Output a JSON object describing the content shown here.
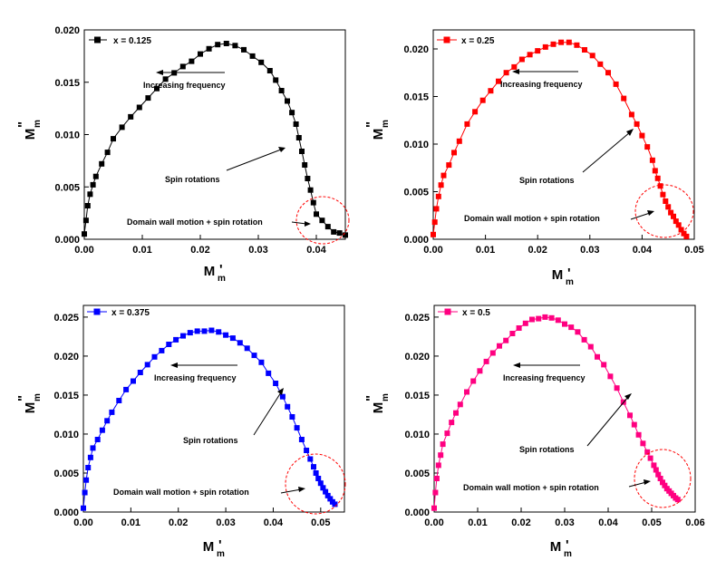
{
  "chart_data": [
    {
      "type": "scatter",
      "series": [
        {
          "name": "x = 0.125",
          "color": "#000000",
          "x": [
            0.0,
            0.0003,
            0.0006,
            0.001,
            0.0015,
            0.002,
            0.003,
            0.004,
            0.005,
            0.0065,
            0.008,
            0.0095,
            0.011,
            0.0125,
            0.014,
            0.0155,
            0.017,
            0.0185,
            0.02,
            0.0215,
            0.023,
            0.0245,
            0.026,
            0.0275,
            0.029,
            0.0305,
            0.032,
            0.033,
            0.034,
            0.035,
            0.0358,
            0.0365,
            0.037,
            0.0375,
            0.038,
            0.0385,
            0.039,
            0.0395,
            0.04,
            0.041,
            0.042,
            0.043,
            0.044,
            0.045
          ],
          "y": [
            0.0005,
            0.0018,
            0.0032,
            0.0043,
            0.0052,
            0.006,
            0.0072,
            0.0083,
            0.0096,
            0.0107,
            0.0117,
            0.0126,
            0.0135,
            0.0144,
            0.0153,
            0.0159,
            0.0165,
            0.017,
            0.0177,
            0.0182,
            0.0186,
            0.0187,
            0.0185,
            0.0181,
            0.0175,
            0.0169,
            0.0161,
            0.0152,
            0.0142,
            0.0132,
            0.0121,
            0.011,
            0.0097,
            0.0084,
            0.0071,
            0.0058,
            0.0047,
            0.0035,
            0.0024,
            0.0018,
            0.0012,
            0.0007,
            0.0006,
            0.0004
          ]
        }
      ],
      "legend_label": "x = 0.125",
      "xlabel": "M",
      "ylabel": "M",
      "xlabel_sub": "m",
      "xlabel_sup": "'",
      "ylabel_sub": "m",
      "ylabel_sup": "\"",
      "xlim": [
        0,
        0.045
      ],
      "ylim": [
        0,
        0.02
      ],
      "xticks": [
        "0.00",
        "0.01",
        "0.02",
        "0.03",
        "0.04"
      ],
      "yticks": [
        "0.000",
        "0.005",
        "0.010",
        "0.015",
        "0.020"
      ],
      "annotations": {
        "frequency": "Increasing frequency",
        "spin": "Spin rotations",
        "domain": "Domain wall motion + spin rotation"
      },
      "legend_position": "top-left"
    },
    {
      "type": "scatter",
      "series": [
        {
          "name": "x = 0.25",
          "color": "#ff0000",
          "x": [
            0.0,
            0.0003,
            0.0006,
            0.001,
            0.0015,
            0.002,
            0.003,
            0.004,
            0.005,
            0.0065,
            0.008,
            0.0095,
            0.011,
            0.0125,
            0.014,
            0.0155,
            0.017,
            0.0185,
            0.02,
            0.0215,
            0.023,
            0.0245,
            0.026,
            0.0275,
            0.029,
            0.0305,
            0.032,
            0.0335,
            0.035,
            0.0365,
            0.038,
            0.039,
            0.04,
            0.041,
            0.042,
            0.0425,
            0.043,
            0.0435,
            0.044,
            0.0445,
            0.045,
            0.0455,
            0.046,
            0.0465,
            0.047,
            0.0475,
            0.048,
            0.0485
          ],
          "y": [
            0.0005,
            0.0018,
            0.0032,
            0.0045,
            0.0057,
            0.0067,
            0.0078,
            0.0091,
            0.0103,
            0.0121,
            0.0134,
            0.0146,
            0.0156,
            0.0166,
            0.0175,
            0.0181,
            0.0189,
            0.0194,
            0.0198,
            0.0202,
            0.0205,
            0.0207,
            0.0207,
            0.0204,
            0.0199,
            0.0193,
            0.0184,
            0.0175,
            0.0163,
            0.0148,
            0.0131,
            0.0121,
            0.0109,
            0.0097,
            0.0083,
            0.0072,
            0.0064,
            0.0056,
            0.0047,
            0.004,
            0.0034,
            0.0028,
            0.0024,
            0.0019,
            0.0015,
            0.001,
            0.0006,
            0.0003
          ]
        }
      ],
      "legend_label": "x = 0.25",
      "xlabel": "M",
      "ylabel": "M",
      "xlabel_sub": "m",
      "xlabel_sup": "'",
      "ylabel_sub": "m",
      "ylabel_sup": "\"",
      "xlim": [
        0,
        0.05
      ],
      "ylim": [
        0,
        0.022
      ],
      "xticks": [
        "0.00",
        "0.01",
        "0.02",
        "0.03",
        "0.04",
        "0.05"
      ],
      "yticks": [
        "0.000",
        "0.005",
        "0.010",
        "0.015",
        "0.020"
      ],
      "annotations": {
        "frequency": "Increasing frequency",
        "spin": "Spin rotations",
        "domain": "Domain wall motion + spin rotation"
      },
      "legend_position": "top-left"
    },
    {
      "type": "scatter",
      "series": [
        {
          "name": "x = 0.375",
          "color": "#0000ff",
          "x": [
            0.0,
            0.0003,
            0.0006,
            0.001,
            0.0015,
            0.002,
            0.003,
            0.004,
            0.005,
            0.006,
            0.0075,
            0.009,
            0.0105,
            0.012,
            0.0135,
            0.015,
            0.0165,
            0.018,
            0.0195,
            0.021,
            0.0225,
            0.024,
            0.0255,
            0.027,
            0.0285,
            0.03,
            0.0315,
            0.033,
            0.0345,
            0.036,
            0.0375,
            0.039,
            0.0405,
            0.042,
            0.043,
            0.044,
            0.045,
            0.046,
            0.047,
            0.0478,
            0.0485,
            0.049,
            0.0495,
            0.05,
            0.0505,
            0.051,
            0.0515,
            0.052,
            0.0525,
            0.053
          ],
          "y": [
            0.0005,
            0.0025,
            0.0041,
            0.0057,
            0.007,
            0.0082,
            0.0093,
            0.0105,
            0.0117,
            0.0128,
            0.0143,
            0.0157,
            0.0168,
            0.0179,
            0.0189,
            0.0199,
            0.0207,
            0.0215,
            0.0221,
            0.0226,
            0.023,
            0.0232,
            0.0232,
            0.0233,
            0.0231,
            0.0227,
            0.0223,
            0.0217,
            0.021,
            0.0201,
            0.0192,
            0.0178,
            0.0165,
            0.0148,
            0.0135,
            0.0122,
            0.0108,
            0.0093,
            0.0079,
            0.0068,
            0.0058,
            0.005,
            0.0043,
            0.0037,
            0.0031,
            0.0026,
            0.0021,
            0.0017,
            0.0013,
            0.001
          ]
        }
      ],
      "legend_label": "x = 0.375",
      "xlabel": "M",
      "ylabel": "M",
      "xlabel_sub": "m",
      "xlabel_sup": "'",
      "ylabel_sub": "m",
      "ylabel_sup": "\"",
      "xlim": [
        0,
        0.055
      ],
      "ylim": [
        0,
        0.0265
      ],
      "xticks": [
        "0.00",
        "0.01",
        "0.02",
        "0.03",
        "0.04",
        "0.05"
      ],
      "yticks": [
        "0.000",
        "0.005",
        "0.010",
        "0.015",
        "0.020",
        "0.025"
      ],
      "annotations": {
        "frequency": "Increasing frequency",
        "spin": "Spin rotations",
        "domain": "Domain wall motion + spin rotation"
      },
      "legend_position": "top-left"
    },
    {
      "type": "scatter",
      "series": [
        {
          "name": "x = 0.5",
          "color": "#ff0080",
          "x": [
            0.0,
            0.0003,
            0.0006,
            0.001,
            0.0015,
            0.002,
            0.003,
            0.004,
            0.005,
            0.006,
            0.0075,
            0.009,
            0.0105,
            0.012,
            0.0135,
            0.015,
            0.0165,
            0.018,
            0.0195,
            0.021,
            0.0225,
            0.024,
            0.0255,
            0.027,
            0.0285,
            0.03,
            0.0315,
            0.033,
            0.0345,
            0.036,
            0.0375,
            0.039,
            0.0405,
            0.042,
            0.0435,
            0.045,
            0.046,
            0.047,
            0.048,
            0.049,
            0.0497,
            0.0505,
            0.051,
            0.0515,
            0.052,
            0.0525,
            0.053,
            0.0535,
            0.054,
            0.0545,
            0.055,
            0.0555,
            0.056
          ],
          "y": [
            0.0005,
            0.0025,
            0.0043,
            0.006,
            0.0073,
            0.0087,
            0.0101,
            0.0115,
            0.0127,
            0.0138,
            0.0154,
            0.0168,
            0.0181,
            0.0193,
            0.0204,
            0.0213,
            0.022,
            0.0229,
            0.0236,
            0.0242,
            0.0247,
            0.0248,
            0.025,
            0.0249,
            0.0246,
            0.0241,
            0.0237,
            0.0231,
            0.0221,
            0.0212,
            0.0199,
            0.0189,
            0.0174,
            0.0159,
            0.0141,
            0.0124,
            0.0112,
            0.0099,
            0.0088,
            0.0077,
            0.0069,
            0.006,
            0.0054,
            0.0048,
            0.0043,
            0.0038,
            0.0034,
            0.003,
            0.0027,
            0.0024,
            0.0021,
            0.0018,
            0.0016
          ]
        }
      ],
      "legend_label": "x = 0.5",
      "xlabel": "M",
      "ylabel": "M",
      "xlabel_sub": "m",
      "xlabel_sup": "'",
      "ylabel_sub": "m",
      "ylabel_sup": "\"",
      "xlim": [
        0,
        0.06
      ],
      "ylim": [
        0,
        0.0265
      ],
      "xticks": [
        "0.00",
        "0.01",
        "0.02",
        "0.03",
        "0.04",
        "0.05",
        "0.06"
      ],
      "yticks": [
        "0.000",
        "0.005",
        "0.010",
        "0.015",
        "0.020",
        "0.025"
      ],
      "annotations": {
        "frequency": "Increasing frequency",
        "spin": "Spin rotations",
        "domain": "Domain wall motion + spin rotation"
      },
      "legend_position": "top-left"
    }
  ]
}
